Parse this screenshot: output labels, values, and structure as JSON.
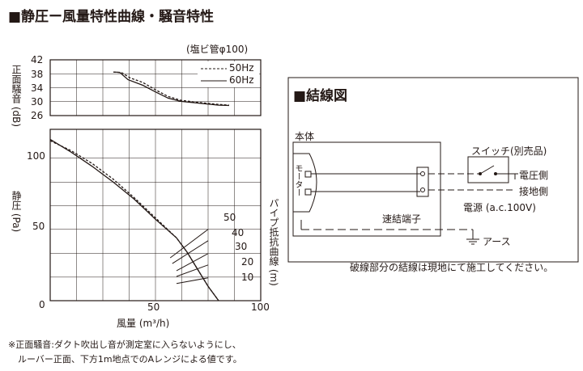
{
  "left_title": "■静圧ー風量特性曲線・騒音特性",
  "pipe_note": "(塩ビ管φ100)",
  "noise_chart": {
    "ylabel": "正面騒音 (dB)",
    "yticks": [
      "42",
      "38",
      "34",
      "30",
      "26"
    ],
    "legend": [
      {
        "label": "50Hz",
        "style": "dashed"
      },
      {
        "label": "60Hz",
        "style": "solid"
      }
    ]
  },
  "pressure_chart": {
    "ylabel": "静圧 (Pa)",
    "xlabel": "風量 (m³/h)",
    "yticks": [
      "100",
      "50",
      "0"
    ],
    "xticks": [
      "50",
      "100"
    ],
    "resistance_label": "パイプ抵抗曲線 (m)",
    "resistance_values": [
      "50",
      "40",
      "30",
      "20",
      "10"
    ]
  },
  "chart_data": [
    {
      "type": "line",
      "ylabel": "正面騒音 (dB)",
      "ylim": [
        26,
        42
      ],
      "xlim": [
        0,
        100
      ],
      "series": [
        {
          "name": "50Hz",
          "x": [
            30,
            34,
            38,
            44,
            50,
            56,
            62,
            70,
            80,
            85
          ],
          "y": [
            38.5,
            38.3,
            36.8,
            35.5,
            33.4,
            31.5,
            30.4,
            29.8,
            29.2,
            29.0
          ]
        },
        {
          "name": "60Hz",
          "x": [
            30,
            33,
            37,
            44,
            50,
            56,
            62,
            70,
            80,
            85
          ],
          "y": [
            38.5,
            38.4,
            36.3,
            34.7,
            32.8,
            31.0,
            30.1,
            29.6,
            29.0,
            28.9
          ]
        }
      ]
    },
    {
      "type": "line",
      "ylabel": "静圧 (Pa)",
      "xlabel": "風量 (m³/h)",
      "ylim": [
        0,
        120
      ],
      "xlim": [
        0,
        100
      ],
      "series": [
        {
          "name": "50Hz",
          "x": [
            0,
            10,
            20,
            30,
            40,
            50,
            60,
            65,
            70,
            75,
            80
          ],
          "y": [
            112,
            105,
            96,
            85,
            72,
            58,
            44,
            34,
            22,
            10,
            0
          ]
        },
        {
          "name": "60Hz",
          "x": [
            0,
            10,
            20,
            30,
            40,
            50,
            60,
            65,
            70,
            75,
            80
          ],
          "y": [
            113,
            104,
            94,
            83,
            71,
            57,
            44,
            34,
            22,
            10,
            0
          ]
        },
        {
          "name": "10",
          "x": [
            60,
            75
          ],
          "y": [
            12,
            16
          ]
        },
        {
          "name": "20",
          "x": [
            60,
            75
          ],
          "y": [
            17,
            25
          ]
        },
        {
          "name": "30",
          "x": [
            60,
            75
          ],
          "y": [
            21,
            33
          ]
        },
        {
          "name": "40",
          "x": [
            58,
            75
          ],
          "y": [
            26,
            42
          ]
        },
        {
          "name": "50",
          "x": [
            57,
            75
          ],
          "y": [
            30,
            50
          ]
        }
      ]
    }
  ],
  "wiring": {
    "title": "■結線図",
    "body_label": "本体",
    "motor_label": "モーター",
    "terminal_label": "速結端子",
    "switch_label": "スイッチ(別売品)",
    "voltage_side": "電圧側",
    "ground_side": "接地側",
    "power_label": "電源 (a.c.100V)",
    "earth_label": "アース",
    "note": "破線部分の結線は現地にて施工してください。"
  },
  "footnote": {
    "line1": "※正面騒音:ダクト吹出し音が測定室に入らないようにし、",
    "line2": "ルーバー正面、下方1m地点でのAレンジによる値です。"
  }
}
